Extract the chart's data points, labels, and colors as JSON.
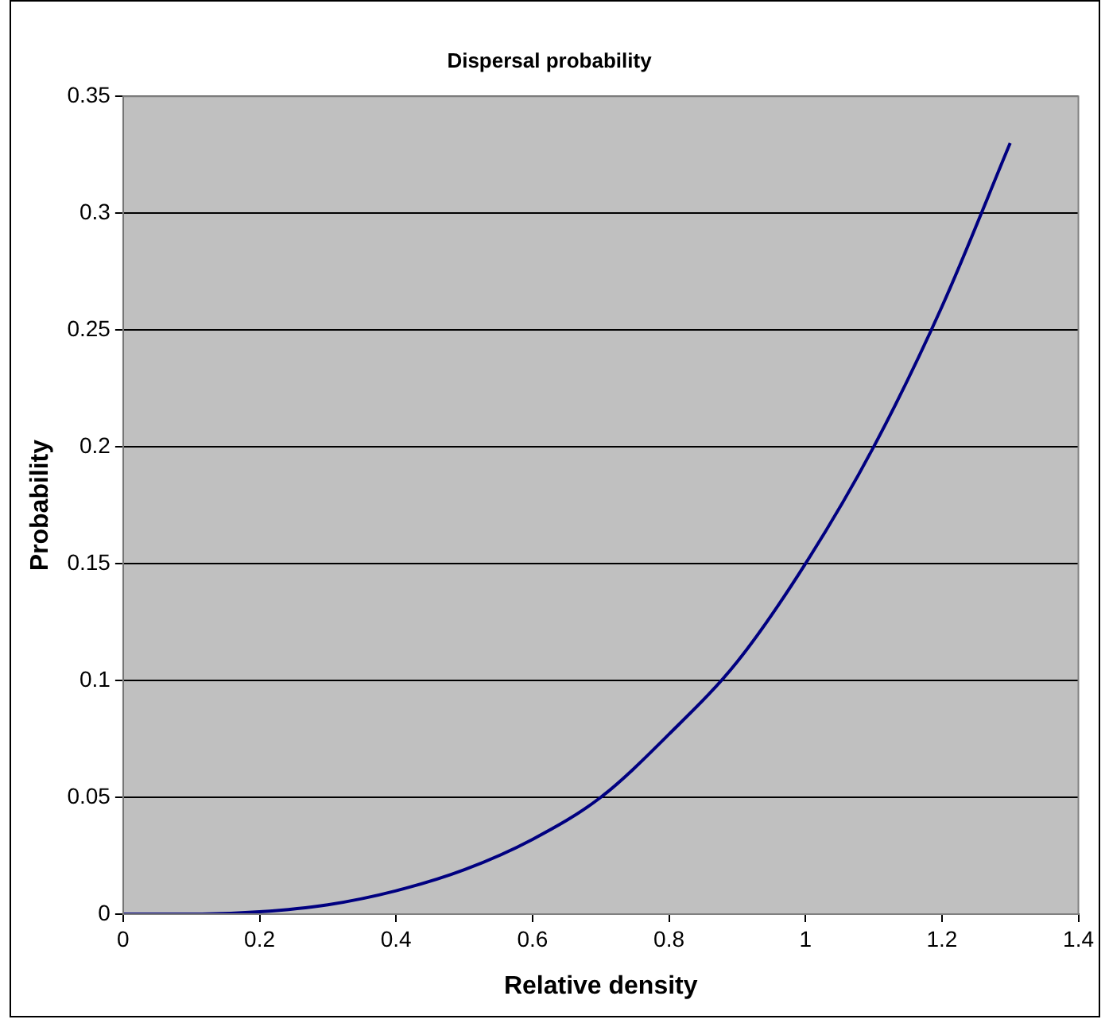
{
  "chart_data": {
    "type": "line",
    "title": "Dispersal probability",
    "xlabel": "Relative density",
    "ylabel": "Probability",
    "x": [
      0,
      0.1,
      0.2,
      0.3,
      0.4,
      0.5,
      0.6,
      0.7,
      0.8,
      0.9,
      1.0,
      1.1,
      1.2,
      1.3
    ],
    "series": [
      {
        "color": "#000080",
        "values": [
          0,
          0,
          0.001,
          0.004,
          0.01,
          0.019,
          0.032,
          0.05,
          0.077,
          0.108,
          0.15,
          0.2,
          0.26,
          0.33
        ]
      }
    ],
    "xlim": [
      0,
      1.4
    ],
    "xticks": [
      0,
      0.2,
      0.4,
      0.6,
      0.8,
      1,
      1.2,
      1.4
    ],
    "ylim": [
      0,
      0.35
    ],
    "yticks": [
      0,
      0.05,
      0.1,
      0.15,
      0.2,
      0.25,
      0.3,
      0.35
    ],
    "grid": "y",
    "legend": false,
    "marker": "none",
    "line_style": "solid"
  }
}
